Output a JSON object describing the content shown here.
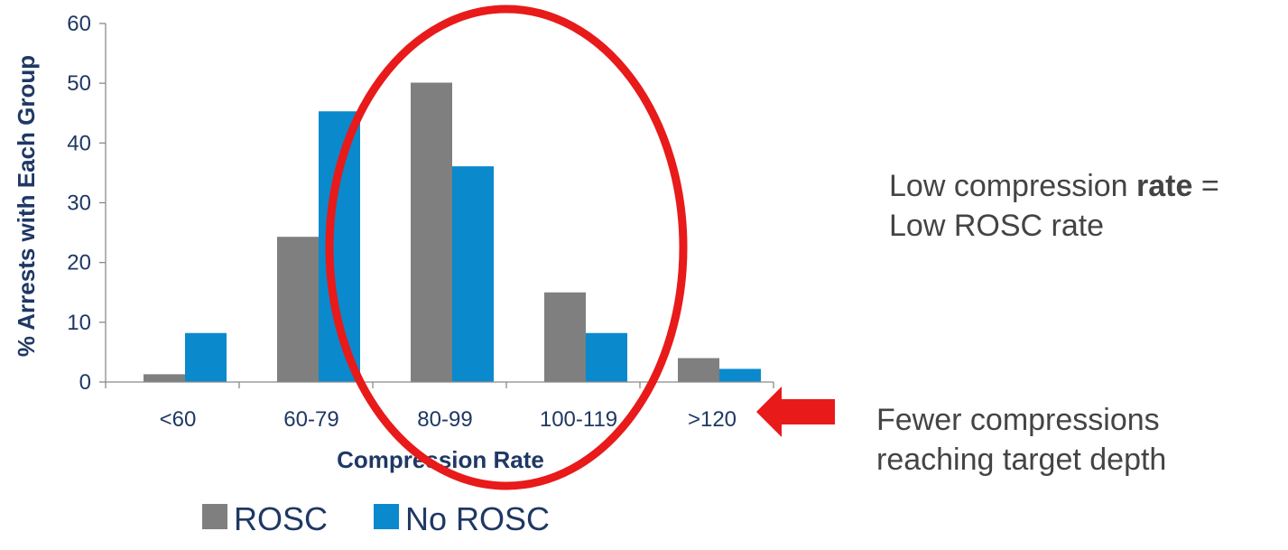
{
  "chart_data": {
    "type": "bar",
    "categories": [
      "<60",
      "60-79",
      "80-99",
      "100-119",
      ">120"
    ],
    "series": [
      {
        "name": "ROSC",
        "color": "#7f7f7f",
        "values": [
          1.3,
          24.3,
          50.1,
          15.0,
          4.0
        ]
      },
      {
        "name": "No ROSC",
        "color": "#0a89cc",
        "values": [
          8.2,
          45.3,
          36.1,
          8.2,
          2.2
        ]
      }
    ],
    "xlabel": "Compression Rate",
    "ylabel": "% Arrests with Each Group",
    "ylim": [
      0,
      60
    ],
    "yticks": [
      0,
      10,
      20,
      30,
      40,
      50,
      60
    ],
    "grid": false,
    "legend": "bottom",
    "label_color": "#1f3864",
    "tick_color": "#1f3864"
  },
  "annotations": {
    "rate_note_prefix": "Low compression ",
    "rate_note_bold": "rate",
    "rate_note_suffix": " =",
    "rate_note_line2": "Low ROSC rate",
    "depth_note_line1": "Fewer compressions",
    "depth_note_line2": "reaching target depth",
    "highlight_color": "#e81a1a"
  }
}
